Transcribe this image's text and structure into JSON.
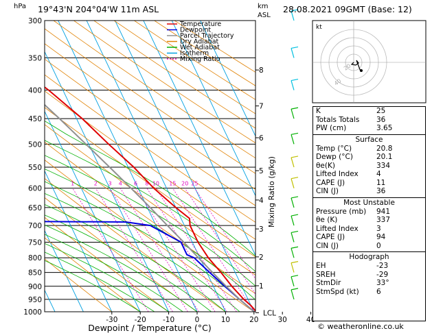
{
  "header": {
    "location": "19°43'N  204°04'W  11m  ASL",
    "datetime": "28.08.2021  09GMT  (Base: 12)",
    "hpa_label": "hPa",
    "km_label": "km",
    "asl_label": "ASL"
  },
  "chart_data": {
    "type": "skew-t",
    "xlabel": "Dewpoint / Temperature (°C)",
    "ylabel_right": "Mixing Ratio (g/kg)",
    "pressure_ticks": [
      300,
      350,
      400,
      450,
      500,
      550,
      600,
      650,
      700,
      750,
      800,
      850,
      900,
      950,
      1000
    ],
    "temp_ticks": [
      -30,
      -20,
      -10,
      0,
      10,
      20,
      30,
      40
    ],
    "xlim": [
      -40,
      40
    ],
    "ylim": [
      1000,
      300
    ],
    "km_ticks": [
      {
        "label": "8",
        "p": 368
      },
      {
        "label": "7",
        "p": 427
      },
      {
        "label": "6",
        "p": 487
      },
      {
        "label": "5",
        "p": 558
      },
      {
        "label": "4",
        "p": 630
      },
      {
        "label": "3",
        "p": 710
      },
      {
        "label": "2",
        "p": 797
      },
      {
        "label": "1",
        "p": 898
      },
      {
        "label": "LCL",
        "p": 1004
      }
    ],
    "mixing_ratio_labels": [
      "1",
      "2",
      "3",
      "4",
      "6",
      "8",
      "10",
      "15",
      "20",
      "25"
    ],
    "legend": [
      "Temperature",
      "Dewpoint",
      "Parcel Trajectory",
      "Dry Adiabat",
      "Wet Adiabat",
      "Isotherm",
      "Mixing Ratio"
    ],
    "series": [
      {
        "name": "Temperature",
        "points": [
          [
            1000,
            20.8
          ],
          [
            975,
            20
          ],
          [
            950,
            18.5
          ],
          [
            900,
            16.5
          ],
          [
            850,
            15
          ],
          [
            800,
            13
          ],
          [
            750,
            12
          ],
          [
            700,
            12
          ],
          [
            680,
            13
          ],
          [
            650,
            10
          ],
          [
            600,
            5.5
          ],
          [
            550,
            2
          ],
          [
            500,
            -3
          ],
          [
            450,
            -8
          ],
          [
            400,
            -15
          ],
          [
            350,
            -25
          ],
          [
            300,
            -35
          ]
        ]
      },
      {
        "name": "Dewpoint",
        "points": [
          [
            1000,
            20.1
          ],
          [
            950,
            17
          ],
          [
            900,
            14
          ],
          [
            850,
            11
          ],
          [
            800,
            8
          ],
          [
            790,
            6
          ],
          [
            760,
            6
          ],
          [
            750,
            6
          ],
          [
            700,
            -2
          ],
          [
            690,
            -10
          ],
          [
            688,
            -53
          ],
          [
            650,
            -52
          ],
          [
            600,
            -55
          ],
          [
            550,
            -60
          ],
          [
            500,
            -56
          ],
          [
            450,
            -63
          ],
          [
            420,
            -45
          ],
          [
            400,
            -43
          ],
          [
            380,
            -45
          ],
          [
            350,
            -47
          ],
          [
            320,
            -55
          ],
          [
            300,
            -48
          ]
        ]
      },
      {
        "name": "Parcel Trajectory",
        "points": [
          [
            1000,
            20.1
          ],
          [
            950,
            17
          ],
          [
            900,
            14.5
          ],
          [
            850,
            12
          ],
          [
            800,
            9.5
          ],
          [
            750,
            7
          ],
          [
            700,
            4
          ],
          [
            650,
            1
          ],
          [
            600,
            -2.5
          ],
          [
            550,
            -6.5
          ],
          [
            500,
            -11
          ],
          [
            450,
            -16
          ],
          [
            400,
            -22
          ],
          [
            350,
            -29
          ],
          [
            300,
            -37
          ]
        ]
      }
    ]
  },
  "hodograph": {
    "label": "kt",
    "ring_labels": [
      "20",
      "40"
    ]
  },
  "stats": {
    "k_label": "K",
    "k_value": "25",
    "tt_label": "Totals Totals",
    "tt_value": "36",
    "pw_label": "PW (cm)",
    "pw_value": "3.65",
    "surface": {
      "title": "Surface",
      "rows": [
        {
          "label": "Temp (°C)",
          "value": "20.8"
        },
        {
          "label": "Dewp (°C)",
          "value": "20.1"
        },
        {
          "label": "θe(K)",
          "value": "334"
        },
        {
          "label": "Lifted Index",
          "value": "4"
        },
        {
          "label": "CAPE (J)",
          "value": "11"
        },
        {
          "label": "CIN (J)",
          "value": "36"
        }
      ]
    },
    "unstable": {
      "title": "Most Unstable",
      "rows": [
        {
          "label": "Pressure (mb)",
          "value": "941"
        },
        {
          "label": "θe (K)",
          "value": "337"
        },
        {
          "label": "Lifted Index",
          "value": "3"
        },
        {
          "label": "CAPE (J)",
          "value": "94"
        },
        {
          "label": "CIN (J)",
          "value": "0"
        }
      ]
    },
    "hodo": {
      "title": "Hodograph",
      "rows": [
        {
          "label": "EH",
          "value": "-23"
        },
        {
          "label": "SREH",
          "value": "-29"
        },
        {
          "label": "StmDir",
          "value": "33°"
        },
        {
          "label": "StmSpd (kt)",
          "value": "6"
        }
      ]
    }
  },
  "footer": "© weatheronline.co.uk",
  "colors": {
    "temperature": "#e00000",
    "dewpoint": "#0000e0",
    "parcel": "#909090",
    "dry_adiabat": "#e08000",
    "wet_adiabat": "#00b000",
    "isotherm": "#00a0e0",
    "mixing_ratio": "#e000c0"
  }
}
